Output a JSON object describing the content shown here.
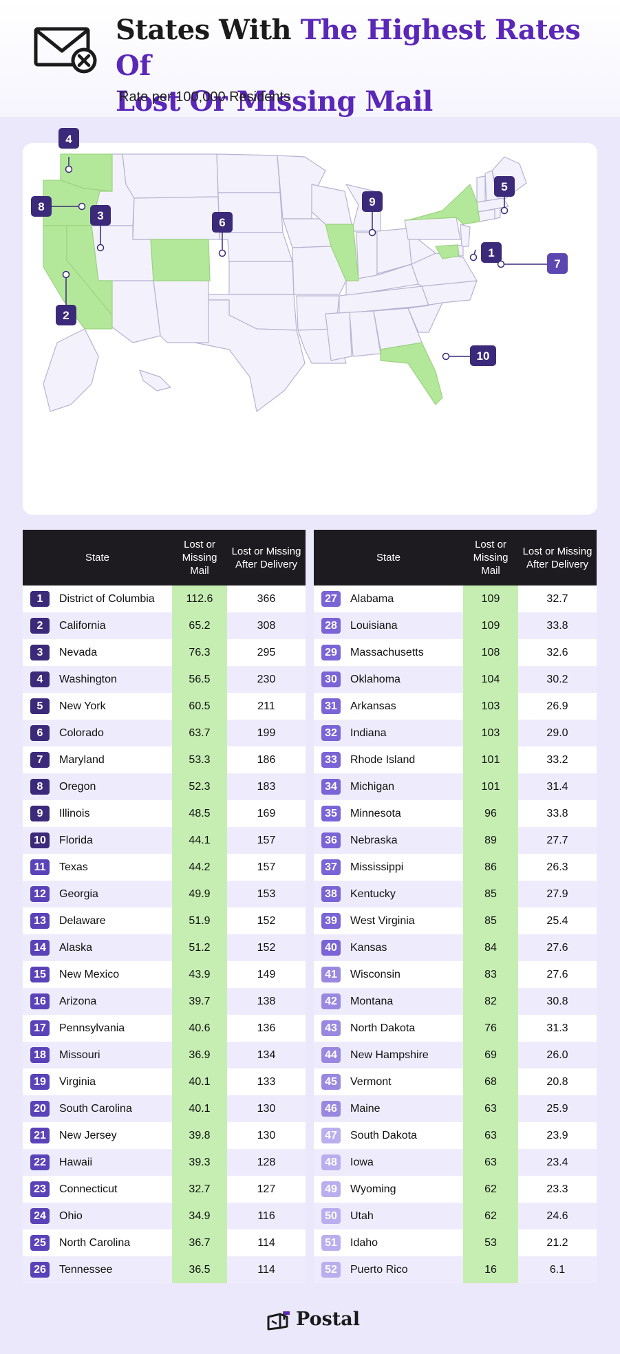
{
  "header": {
    "title_part1": "States With ",
    "title_part2": "The Highest Rates Of",
    "title_part3": "Lost Or Missing Mail",
    "subtitle": "Rate per 100,000 Residents",
    "icon": "mail-x-icon"
  },
  "colors": {
    "accent_purple": "#5a27b8",
    "badge_dark": "#3b2a7a",
    "highlight_green": "#b3e89b",
    "header_bg": "#1d1b20",
    "row_alt": "#eeecfc"
  },
  "map": {
    "highlighted_states": [
      "District of Columbia",
      "California",
      "Nevada",
      "Washington",
      "New York",
      "Colorado",
      "Maryland",
      "Oregon",
      "Illinois",
      "Florida"
    ],
    "markers": [
      "1",
      "2",
      "3",
      "4",
      "5",
      "6",
      "7",
      "8",
      "9",
      "10"
    ]
  },
  "table": {
    "headers": {
      "state": "State",
      "lost": "Lost or Missing Mail",
      "after": "Lost or Missing After Delivery"
    }
  },
  "chart_data": {
    "type": "table",
    "columns": [
      "State",
      "Lost or Missing Mail",
      "Lost or Missing After Delivery"
    ],
    "rows": [
      {
        "rank": "1",
        "state": "District of Columbia",
        "lost": "112.6",
        "after": "366"
      },
      {
        "rank": "2",
        "state": "California",
        "lost": "65.2",
        "after": "308"
      },
      {
        "rank": "3",
        "state": "Nevada",
        "lost": "76.3",
        "after": "295"
      },
      {
        "rank": "4",
        "state": "Washington",
        "lost": "56.5",
        "after": "230"
      },
      {
        "rank": "5",
        "state": "New York",
        "lost": "60.5",
        "after": "211"
      },
      {
        "rank": "6",
        "state": "Colorado",
        "lost": "63.7",
        "after": "199"
      },
      {
        "rank": "7",
        "state": "Maryland",
        "lost": "53.3",
        "after": "186"
      },
      {
        "rank": "8",
        "state": "Oregon",
        "lost": "52.3",
        "after": "183"
      },
      {
        "rank": "9",
        "state": "Illinois",
        "lost": "48.5",
        "after": "169"
      },
      {
        "rank": "10",
        "state": "Florida",
        "lost": "44.1",
        "after": "157"
      },
      {
        "rank": "11",
        "state": "Texas",
        "lost": "44.2",
        "after": "157"
      },
      {
        "rank": "12",
        "state": "Georgia",
        "lost": "49.9",
        "after": "153"
      },
      {
        "rank": "13",
        "state": "Delaware",
        "lost": "51.9",
        "after": "152"
      },
      {
        "rank": "14",
        "state": "Alaska",
        "lost": "51.2",
        "after": "152"
      },
      {
        "rank": "15",
        "state": "New Mexico",
        "lost": "43.9",
        "after": "149"
      },
      {
        "rank": "16",
        "state": "Arizona",
        "lost": "39.7",
        "after": "138"
      },
      {
        "rank": "17",
        "state": "Pennsylvania",
        "lost": "40.6",
        "after": "136"
      },
      {
        "rank": "18",
        "state": "Missouri",
        "lost": "36.9",
        "after": "134"
      },
      {
        "rank": "19",
        "state": "Virginia",
        "lost": "40.1",
        "after": "133"
      },
      {
        "rank": "20",
        "state": "South Carolina",
        "lost": "40.1",
        "after": "130"
      },
      {
        "rank": "21",
        "state": "New Jersey",
        "lost": "39.8",
        "after": "130"
      },
      {
        "rank": "22",
        "state": "Hawaii",
        "lost": "39.3",
        "after": "128"
      },
      {
        "rank": "23",
        "state": "Connecticut",
        "lost": "32.7",
        "after": "127"
      },
      {
        "rank": "24",
        "state": "Ohio",
        "lost": "34.9",
        "after": "116"
      },
      {
        "rank": "25",
        "state": "North Carolina",
        "lost": "36.7",
        "after": "114"
      },
      {
        "rank": "26",
        "state": "Tennessee",
        "lost": "36.5",
        "after": "114"
      },
      {
        "rank": "27",
        "state": "Alabama",
        "lost": "109",
        "after": "32.7"
      },
      {
        "rank": "28",
        "state": "Louisiana",
        "lost": "109",
        "after": "33.8"
      },
      {
        "rank": "29",
        "state": "Massachusetts",
        "lost": "108",
        "after": "32.6"
      },
      {
        "rank": "30",
        "state": "Oklahoma",
        "lost": "104",
        "after": "30.2"
      },
      {
        "rank": "31",
        "state": "Arkansas",
        "lost": "103",
        "after": "26.9"
      },
      {
        "rank": "32",
        "state": "Indiana",
        "lost": "103",
        "after": "29.0"
      },
      {
        "rank": "33",
        "state": "Rhode Island",
        "lost": "101",
        "after": "33.2"
      },
      {
        "rank": "34",
        "state": "Michigan",
        "lost": "101",
        "after": "31.4"
      },
      {
        "rank": "35",
        "state": "Minnesota",
        "lost": "96",
        "after": "33.8"
      },
      {
        "rank": "36",
        "state": "Nebraska",
        "lost": "89",
        "after": "27.7"
      },
      {
        "rank": "37",
        "state": "Mississippi",
        "lost": "86",
        "after": "26.3"
      },
      {
        "rank": "38",
        "state": "Kentucky",
        "lost": "85",
        "after": "27.9"
      },
      {
        "rank": "39",
        "state": "West Virginia",
        "lost": "85",
        "after": "25.4"
      },
      {
        "rank": "40",
        "state": "Kansas",
        "lost": "84",
        "after": "27.6"
      },
      {
        "rank": "41",
        "state": "Wisconsin",
        "lost": "83",
        "after": "27.6"
      },
      {
        "rank": "42",
        "state": "Montana",
        "lost": "82",
        "after": "30.8"
      },
      {
        "rank": "43",
        "state": "North Dakota",
        "lost": "76",
        "after": "31.3"
      },
      {
        "rank": "44",
        "state": "New Hampshire",
        "lost": "69",
        "after": "26.0"
      },
      {
        "rank": "45",
        "state": "Vermont",
        "lost": "68",
        "after": "20.8"
      },
      {
        "rank": "46",
        "state": "Maine",
        "lost": "63",
        "after": "25.9"
      },
      {
        "rank": "47",
        "state": "South Dakota",
        "lost": "63",
        "after": "23.9"
      },
      {
        "rank": "48",
        "state": "Iowa",
        "lost": "63",
        "after": "23.4"
      },
      {
        "rank": "49",
        "state": "Wyoming",
        "lost": "62",
        "after": "23.3"
      },
      {
        "rank": "50",
        "state": "Utah",
        "lost": "62",
        "after": "24.6"
      },
      {
        "rank": "51",
        "state": "Idaho",
        "lost": "53",
        "after": "21.2"
      },
      {
        "rank": "52",
        "state": "Puerto Rico",
        "lost": "16",
        "after": "6.1"
      }
    ]
  },
  "footer": {
    "brand": "Postal",
    "icon": "postal-logo-icon"
  }
}
